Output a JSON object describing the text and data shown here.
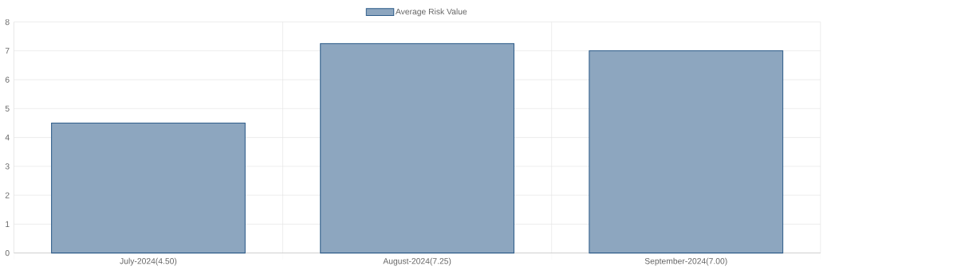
{
  "chart_data": {
    "type": "bar",
    "categories": [
      "July-2024(4.50)",
      "August-2024(7.25)",
      "September-2024(7.00)"
    ],
    "series": [
      {
        "name": "Average Risk Value",
        "color": "#2f5d8a",
        "values": [
          4.5,
          7.25,
          7.0
        ]
      }
    ],
    "ylim": [
      0,
      8
    ],
    "yticks": [
      0,
      1,
      2,
      3,
      4,
      5,
      6,
      7,
      8
    ],
    "grid": true,
    "legend": "top"
  }
}
